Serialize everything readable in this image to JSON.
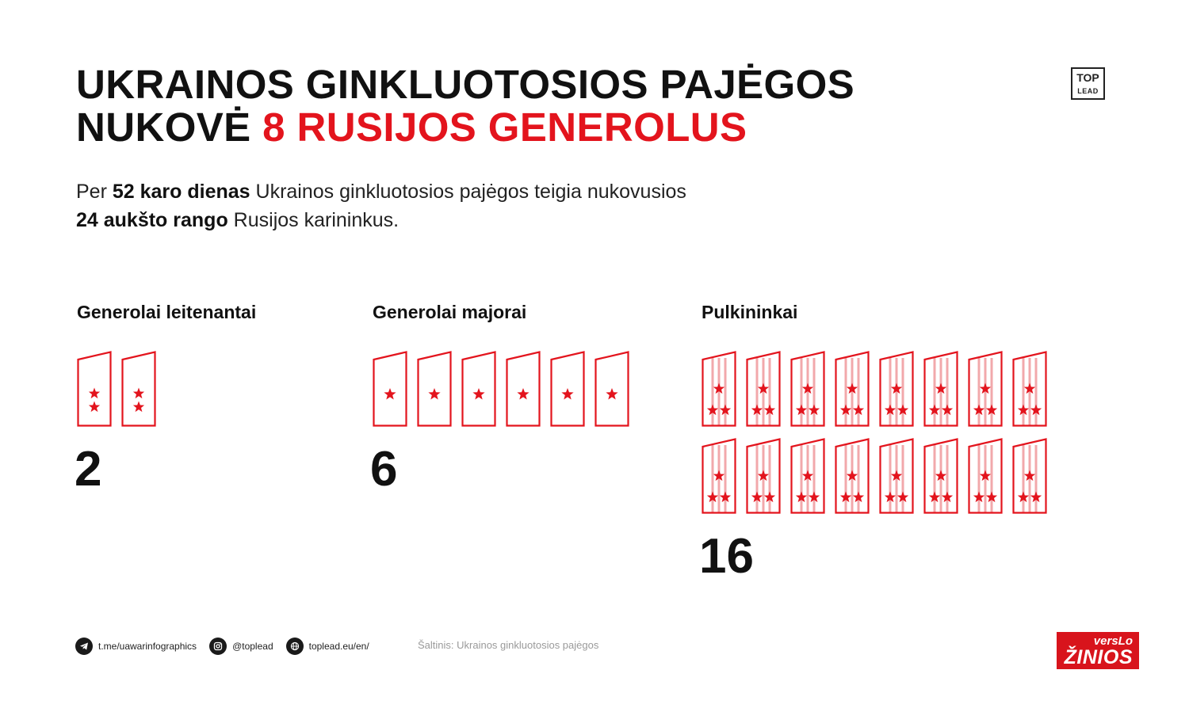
{
  "title": {
    "line1": "UKRAINOS GINKLUOTOSIOS PAJĖGOS",
    "line2_prefix": "NUKOVĖ ",
    "line2_highlight": "8 RUSIJOS GENEROLUS"
  },
  "logo": {
    "top": "TOP",
    "bottom": "LEAD"
  },
  "intro": {
    "l1_a": "Per ",
    "l1_b": "52 karo dienas",
    "l1_c": " Ukrainos ginkluotosios pajėgos teigia nukovusios",
    "l2_b": "24 aukšto rango",
    "l2_c": " Rusijos karininkus."
  },
  "groups": [
    {
      "title": "Generolai leitenantai",
      "count": "2",
      "icon_count": 2,
      "stars": 2,
      "stripes": false
    },
    {
      "title": "Generolai majorai",
      "count": "6",
      "icon_count": 6,
      "stars": 1,
      "stripes": false
    },
    {
      "title": "Pulkininkai",
      "count": "16",
      "icon_count": 16,
      "stars": 3,
      "stripes": true
    }
  ],
  "footer": {
    "telegram": "t.me/uawarinfographics",
    "instagram": "@toplead",
    "web": "toplead.eu/en/",
    "source": "Šaltinis: Ukrainos ginkluotosios pajėgos"
  },
  "brand": {
    "line1": "versLo",
    "line2": "ŽINIOS"
  },
  "colors": {
    "accent": "#e3141d",
    "text": "#111111",
    "stripe": "#f2a8ab"
  }
}
